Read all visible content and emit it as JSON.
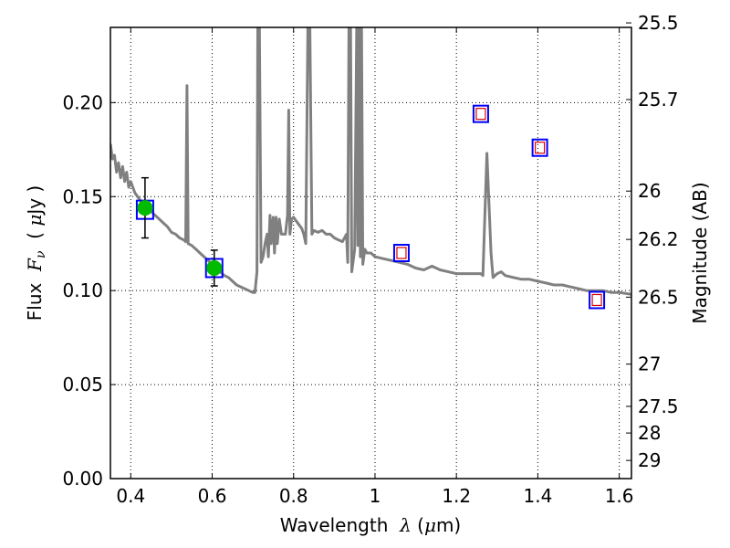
{
  "chart_data": {
    "type": "line",
    "xlabel": {
      "prefix": "Wavelength  ",
      "symbol": "λ",
      "unit": " (",
      "mu": "μ",
      "unit_end": "m)"
    },
    "ylabel": {
      "prefix": "Flux  ",
      "symbol": "F",
      "sub": "ν",
      "unit_open": "  ( ",
      "mu": "μ",
      "unit_end": "Jy )"
    },
    "y2label": "Magnitude (AB)",
    "xlim": [
      0.35,
      1.63
    ],
    "ylim": [
      0.0,
      0.24
    ],
    "grid": true,
    "x_ticks": [
      {
        "value": 0.4,
        "label": "0.4"
      },
      {
        "value": 0.6,
        "label": "0.6"
      },
      {
        "value": 0.8,
        "label": "0.8"
      },
      {
        "value": 1.0,
        "label": "1"
      },
      {
        "value": 1.2,
        "label": "1.2"
      },
      {
        "value": 1.4,
        "label": "1.4"
      },
      {
        "value": 1.6,
        "label": "1.6"
      }
    ],
    "y_ticks": [
      {
        "value": 0.0,
        "label": "0.00"
      },
      {
        "value": 0.05,
        "label": "0.05"
      },
      {
        "value": 0.1,
        "label": "0.10"
      },
      {
        "value": 0.15,
        "label": "0.15"
      },
      {
        "value": 0.2,
        "label": "0.20"
      }
    ],
    "y2_ticks": [
      {
        "mag": 25.5,
        "label": "25.5"
      },
      {
        "mag": 25.7,
        "label": "25.7"
      },
      {
        "mag": 26.0,
        "label": "26"
      },
      {
        "mag": 26.2,
        "label": "26.2"
      },
      {
        "mag": 26.5,
        "label": "26.5"
      },
      {
        "mag": 27.0,
        "label": "27"
      },
      {
        "mag": 27.5,
        "label": "27.5"
      },
      {
        "mag": 28.0,
        "label": "28"
      },
      {
        "mag": 29.0,
        "label": "29"
      }
    ],
    "series": [
      {
        "type": "line",
        "color": "#808080",
        "points": [
          [
            0.35,
            0.178
          ],
          [
            0.355,
            0.17
          ],
          [
            0.36,
            0.172
          ],
          [
            0.365,
            0.163
          ],
          [
            0.37,
            0.168
          ],
          [
            0.375,
            0.16
          ],
          [
            0.38,
            0.166
          ],
          [
            0.385,
            0.158
          ],
          [
            0.39,
            0.163
          ],
          [
            0.395,
            0.155
          ],
          [
            0.4,
            0.158
          ],
          [
            0.41,
            0.152
          ],
          [
            0.42,
            0.149
          ],
          [
            0.43,
            0.146
          ],
          [
            0.44,
            0.144
          ],
          [
            0.45,
            0.142
          ],
          [
            0.46,
            0.14
          ],
          [
            0.47,
            0.138
          ],
          [
            0.48,
            0.136
          ],
          [
            0.49,
            0.134
          ],
          [
            0.5,
            0.131
          ],
          [
            0.51,
            0.13
          ],
          [
            0.52,
            0.128
          ],
          [
            0.53,
            0.127
          ],
          [
            0.535,
            0.126
          ],
          [
            0.538,
            0.209
          ],
          [
            0.541,
            0.125
          ],
          [
            0.55,
            0.124
          ],
          [
            0.56,
            0.122
          ],
          [
            0.57,
            0.12
          ],
          [
            0.58,
            0.118
          ],
          [
            0.59,
            0.116
          ],
          [
            0.6,
            0.114
          ],
          [
            0.61,
            0.112
          ],
          [
            0.62,
            0.11
          ],
          [
            0.63,
            0.108
          ],
          [
            0.64,
            0.107
          ],
          [
            0.65,
            0.105
          ],
          [
            0.66,
            0.103
          ],
          [
            0.67,
            0.102
          ],
          [
            0.68,
            0.101
          ],
          [
            0.69,
            0.1
          ],
          [
            0.7,
            0.099
          ],
          [
            0.705,
            0.099
          ],
          [
            0.71,
            0.11
          ],
          [
            0.712,
            0.24
          ],
          [
            0.716,
            0.24
          ],
          [
            0.72,
            0.115
          ],
          [
            0.725,
            0.118
          ],
          [
            0.73,
            0.125
          ],
          [
            0.735,
            0.13
          ],
          [
            0.738,
            0.118
          ],
          [
            0.742,
            0.14
          ],
          [
            0.745,
            0.125
          ],
          [
            0.75,
            0.139
          ],
          [
            0.753,
            0.12
          ],
          [
            0.757,
            0.139
          ],
          [
            0.76,
            0.125
          ],
          [
            0.765,
            0.138
          ],
          [
            0.77,
            0.13
          ],
          [
            0.78,
            0.13
          ],
          [
            0.785,
            0.14
          ],
          [
            0.788,
            0.196
          ],
          [
            0.791,
            0.13
          ],
          [
            0.795,
            0.138
          ],
          [
            0.8,
            0.139
          ],
          [
            0.81,
            0.136
          ],
          [
            0.82,
            0.133
          ],
          [
            0.825,
            0.13
          ],
          [
            0.83,
            0.125
          ],
          [
            0.835,
            0.24
          ],
          [
            0.84,
            0.24
          ],
          [
            0.845,
            0.13
          ],
          [
            0.85,
            0.132
          ],
          [
            0.86,
            0.131
          ],
          [
            0.87,
            0.132
          ],
          [
            0.88,
            0.13
          ],
          [
            0.89,
            0.13
          ],
          [
            0.9,
            0.128
          ],
          [
            0.91,
            0.127
          ],
          [
            0.92,
            0.126
          ],
          [
            0.93,
            0.13
          ],
          [
            0.933,
            0.115
          ],
          [
            0.936,
            0.24
          ],
          [
            0.94,
            0.24
          ],
          [
            0.943,
            0.11
          ],
          [
            0.95,
            0.122
          ],
          [
            0.955,
            0.24
          ],
          [
            0.958,
            0.124
          ],
          [
            0.961,
            0.24
          ],
          [
            0.964,
            0.118
          ],
          [
            0.967,
            0.24
          ],
          [
            0.97,
            0.114
          ],
          [
            0.975,
            0.122
          ],
          [
            0.98,
            0.12
          ],
          [
            0.99,
            0.12
          ],
          [
            1.0,
            0.118
          ],
          [
            1.02,
            0.117
          ],
          [
            1.04,
            0.116
          ],
          [
            1.06,
            0.115
          ],
          [
            1.08,
            0.114
          ],
          [
            1.1,
            0.112
          ],
          [
            1.12,
            0.111
          ],
          [
            1.14,
            0.113
          ],
          [
            1.16,
            0.111
          ],
          [
            1.18,
            0.11
          ],
          [
            1.2,
            0.109
          ],
          [
            1.22,
            0.109
          ],
          [
            1.24,
            0.109
          ],
          [
            1.26,
            0.109
          ],
          [
            1.265,
            0.108
          ],
          [
            1.275,
            0.173
          ],
          [
            1.285,
            0.12
          ],
          [
            1.29,
            0.107
          ],
          [
            1.3,
            0.109
          ],
          [
            1.31,
            0.11
          ],
          [
            1.32,
            0.108
          ],
          [
            1.34,
            0.107
          ],
          [
            1.36,
            0.106
          ],
          [
            1.38,
            0.106
          ],
          [
            1.4,
            0.105
          ],
          [
            1.42,
            0.104
          ],
          [
            1.44,
            0.103
          ],
          [
            1.46,
            0.103
          ],
          [
            1.48,
            0.102
          ],
          [
            1.5,
            0.101
          ],
          [
            1.52,
            0.1
          ],
          [
            1.54,
            0.1
          ],
          [
            1.56,
            0.1
          ],
          [
            1.58,
            0.099
          ],
          [
            1.6,
            0.099
          ],
          [
            1.63,
            0.098
          ]
        ]
      },
      {
        "type": "model_squares",
        "color": "#0000ff",
        "points": [
          [
            0.435,
            0.143
          ],
          [
            0.605,
            0.112
          ]
        ]
      },
      {
        "type": "observed_points",
        "color": "#00bb00",
        "points": [
          {
            "x": 0.435,
            "y": 0.144,
            "err": 0.016
          },
          {
            "x": 0.605,
            "y": 0.112,
            "err": 0.0095
          }
        ]
      },
      {
        "type": "upper_limit_squares",
        "outer_color": "#0000ff",
        "inner_color": "#dd0000",
        "points": [
          [
            1.065,
            0.12
          ],
          [
            1.26,
            0.194
          ],
          [
            1.405,
            0.176
          ],
          [
            1.545,
            0.095
          ]
        ]
      }
    ]
  }
}
